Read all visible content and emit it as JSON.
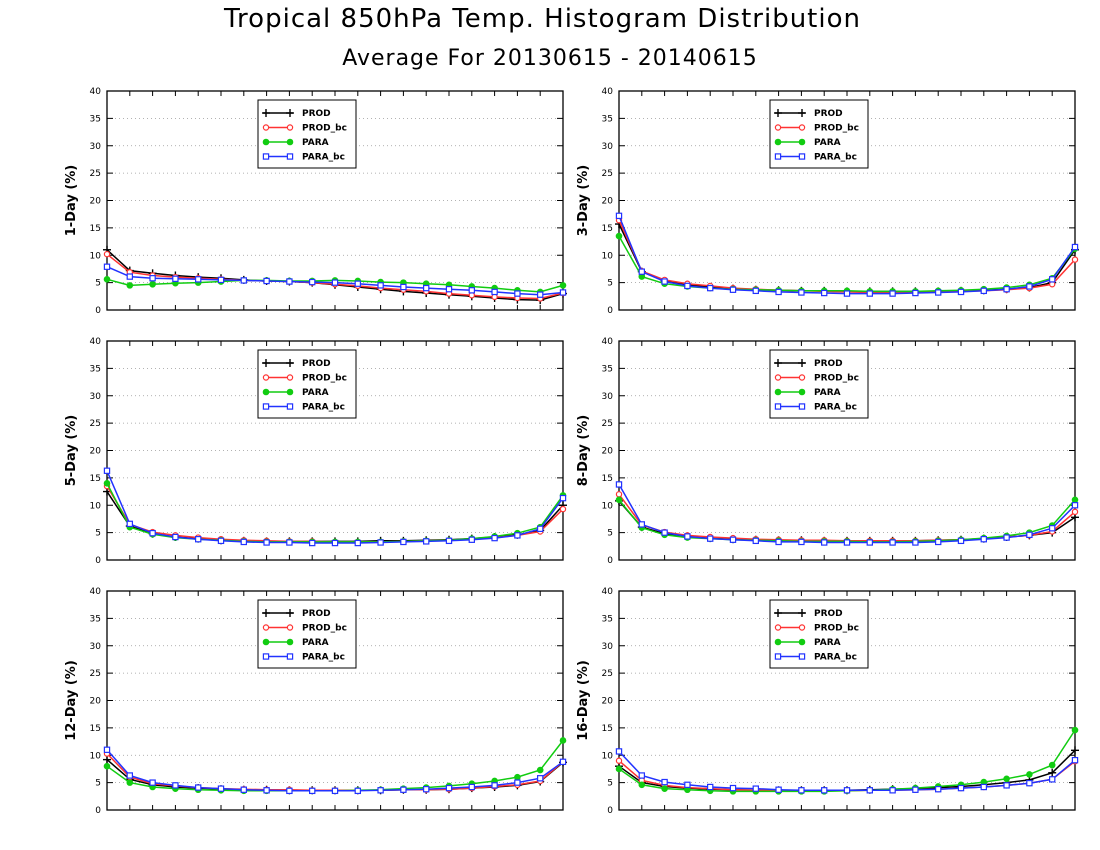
{
  "title": "Tropical 850hPa Temp. Histogram Distribution",
  "subtitle": "Average For 20130615 - 20140615",
  "colors": {
    "PROD": "#000000",
    "PROD_bc": "#ff3333",
    "PARA": "#11cc11",
    "PARA_bc": "#2233ff"
  },
  "chart_data": [
    {
      "type": "line",
      "ylabel": "1-Day (%)",
      "ylim": [
        0,
        40
      ],
      "yticks": [
        0,
        5,
        10,
        15,
        20,
        25,
        30,
        35,
        40
      ],
      "x": [
        1,
        2,
        3,
        4,
        5,
        6,
        7,
        8,
        9,
        10,
        11,
        12,
        13,
        14,
        15,
        16,
        17,
        18,
        19,
        20,
        21
      ],
      "series": [
        {
          "name": "PROD",
          "values": [
            11.0,
            7.2,
            6.7,
            6.3,
            6.0,
            5.8,
            5.5,
            5.3,
            5.2,
            5.0,
            4.6,
            4.2,
            3.8,
            3.4,
            3.1,
            2.8,
            2.5,
            2.2,
            1.9,
            1.8,
            3.0
          ]
        },
        {
          "name": "PROD_bc",
          "values": [
            10.2,
            6.9,
            6.3,
            6.0,
            5.8,
            5.6,
            5.4,
            5.3,
            5.2,
            5.0,
            4.7,
            4.4,
            4.0,
            3.7,
            3.4,
            3.0,
            2.7,
            2.4,
            2.2,
            2.1,
            3.1
          ]
        },
        {
          "name": "PARA",
          "values": [
            5.6,
            4.5,
            4.7,
            4.9,
            5.0,
            5.2,
            5.4,
            5.4,
            5.3,
            5.3,
            5.4,
            5.3,
            5.1,
            5.0,
            4.8,
            4.6,
            4.3,
            4.0,
            3.6,
            3.3,
            4.5
          ]
        },
        {
          "name": "PARA_bc",
          "values": [
            7.9,
            6.1,
            5.8,
            5.7,
            5.6,
            5.5,
            5.4,
            5.3,
            5.2,
            5.1,
            5.0,
            4.8,
            4.5,
            4.2,
            4.0,
            3.8,
            3.6,
            3.3,
            3.0,
            2.8,
            3.2
          ]
        }
      ]
    },
    {
      "type": "line",
      "ylabel": "3-Day (%)",
      "ylim": [
        0,
        40
      ],
      "yticks": [
        0,
        5,
        10,
        15,
        20,
        25,
        30,
        35,
        40
      ],
      "x": [
        1,
        2,
        3,
        4,
        5,
        6,
        7,
        8,
        9,
        10,
        11,
        12,
        13,
        14,
        15,
        16,
        17,
        18,
        19,
        20,
        21
      ],
      "series": [
        {
          "name": "PROD",
          "values": [
            15.7,
            7.0,
            5.3,
            4.6,
            4.2,
            3.9,
            3.7,
            3.6,
            3.5,
            3.5,
            3.4,
            3.4,
            3.4,
            3.4,
            3.4,
            3.5,
            3.6,
            3.8,
            4.1,
            5.0,
            11.0
          ]
        },
        {
          "name": "PROD_bc",
          "values": [
            16.4,
            7.1,
            5.5,
            4.8,
            4.4,
            4.0,
            3.8,
            3.6,
            3.5,
            3.4,
            3.3,
            3.2,
            3.2,
            3.2,
            3.3,
            3.4,
            3.5,
            3.7,
            4.0,
            4.7,
            9.2
          ]
        },
        {
          "name": "PARA",
          "values": [
            13.5,
            6.1,
            4.8,
            4.3,
            4.0,
            3.8,
            3.7,
            3.6,
            3.5,
            3.5,
            3.5,
            3.4,
            3.4,
            3.4,
            3.5,
            3.6,
            3.8,
            4.1,
            4.6,
            5.8,
            11.2
          ]
        },
        {
          "name": "PARA_bc",
          "values": [
            17.2,
            7.0,
            5.2,
            4.4,
            4.0,
            3.7,
            3.5,
            3.3,
            3.2,
            3.1,
            3.0,
            3.0,
            3.0,
            3.1,
            3.2,
            3.3,
            3.5,
            3.8,
            4.3,
            5.6,
            11.5
          ]
        }
      ]
    },
    {
      "type": "line",
      "ylabel": "5-Day (%)",
      "ylim": [
        0,
        40
      ],
      "yticks": [
        0,
        5,
        10,
        15,
        20,
        25,
        30,
        35,
        40
      ],
      "x": [
        1,
        2,
        3,
        4,
        5,
        6,
        7,
        8,
        9,
        10,
        11,
        12,
        13,
        14,
        15,
        16,
        17,
        18,
        19,
        20,
        21
      ],
      "series": [
        {
          "name": "PROD",
          "values": [
            12.5,
            6.2,
            4.8,
            4.2,
            3.9,
            3.6,
            3.5,
            3.4,
            3.4,
            3.4,
            3.4,
            3.4,
            3.5,
            3.5,
            3.6,
            3.7,
            3.9,
            4.2,
            4.6,
            5.4,
            10.0
          ]
        },
        {
          "name": "PROD_bc",
          "values": [
            13.5,
            6.5,
            5.1,
            4.5,
            4.1,
            3.8,
            3.6,
            3.5,
            3.4,
            3.4,
            3.3,
            3.3,
            3.3,
            3.4,
            3.5,
            3.6,
            3.8,
            4.1,
            4.5,
            5.2,
            9.3
          ]
        },
        {
          "name": "PARA",
          "values": [
            14.0,
            6.0,
            4.7,
            4.1,
            3.8,
            3.6,
            3.4,
            3.3,
            3.3,
            3.3,
            3.3,
            3.3,
            3.3,
            3.4,
            3.5,
            3.6,
            3.9,
            4.3,
            4.9,
            6.0,
            11.8
          ]
        },
        {
          "name": "PARA_bc",
          "values": [
            16.3,
            6.6,
            4.9,
            4.2,
            3.8,
            3.5,
            3.3,
            3.2,
            3.2,
            3.1,
            3.1,
            3.1,
            3.2,
            3.3,
            3.4,
            3.5,
            3.7,
            4.0,
            4.5,
            5.7,
            11.3
          ]
        }
      ]
    },
    {
      "type": "line",
      "ylabel": "8-Day (%)",
      "ylim": [
        0,
        40
      ],
      "yticks": [
        0,
        5,
        10,
        15,
        20,
        25,
        30,
        35,
        40
      ],
      "x": [
        1,
        2,
        3,
        4,
        5,
        6,
        7,
        8,
        9,
        10,
        11,
        12,
        13,
        14,
        15,
        16,
        17,
        18,
        19,
        20,
        21
      ],
      "series": [
        {
          "name": "PROD",
          "values": [
            10.8,
            6.0,
            4.8,
            4.3,
            4.0,
            3.8,
            3.7,
            3.6,
            3.6,
            3.5,
            3.5,
            3.5,
            3.5,
            3.5,
            3.6,
            3.7,
            3.9,
            4.2,
            4.5,
            5.0,
            7.8
          ]
        },
        {
          "name": "PROD_bc",
          "values": [
            12.0,
            6.4,
            5.1,
            4.5,
            4.2,
            4.0,
            3.8,
            3.7,
            3.6,
            3.6,
            3.5,
            3.5,
            3.5,
            3.5,
            3.6,
            3.7,
            3.9,
            4.2,
            4.5,
            5.2,
            8.8
          ]
        },
        {
          "name": "PARA",
          "values": [
            11.0,
            5.9,
            4.6,
            4.1,
            3.9,
            3.7,
            3.6,
            3.5,
            3.4,
            3.4,
            3.4,
            3.3,
            3.3,
            3.4,
            3.5,
            3.7,
            4.0,
            4.4,
            5.0,
            6.3,
            11.0
          ]
        },
        {
          "name": "PARA_bc",
          "values": [
            13.8,
            6.5,
            5.0,
            4.3,
            3.9,
            3.7,
            3.5,
            3.3,
            3.3,
            3.2,
            3.2,
            3.2,
            3.2,
            3.2,
            3.3,
            3.5,
            3.8,
            4.1,
            4.6,
            5.8,
            10.0
          ]
        }
      ]
    },
    {
      "type": "line",
      "ylabel": "12-Day (%)",
      "ylim": [
        0,
        40
      ],
      "yticks": [
        0,
        5,
        10,
        15,
        20,
        25,
        30,
        35,
        40
      ],
      "x": [
        1,
        2,
        3,
        4,
        5,
        6,
        7,
        8,
        9,
        10,
        11,
        12,
        13,
        14,
        15,
        16,
        17,
        18,
        19,
        20,
        21
      ],
      "series": [
        {
          "name": "PROD",
          "values": [
            9.2,
            5.6,
            4.6,
            4.2,
            4.0,
            3.8,
            3.7,
            3.7,
            3.6,
            3.6,
            3.6,
            3.6,
            3.6,
            3.7,
            3.7,
            3.8,
            4.0,
            4.2,
            4.5,
            5.2,
            8.7
          ]
        },
        {
          "name": "PROD_bc",
          "values": [
            10.3,
            6.0,
            4.8,
            4.4,
            4.1,
            3.9,
            3.8,
            3.7,
            3.7,
            3.6,
            3.6,
            3.6,
            3.6,
            3.7,
            3.7,
            3.8,
            4.0,
            4.3,
            4.6,
            5.3,
            8.8
          ]
        },
        {
          "name": "PARA",
          "values": [
            8.0,
            5.0,
            4.2,
            3.9,
            3.7,
            3.6,
            3.5,
            3.5,
            3.5,
            3.5,
            3.5,
            3.6,
            3.7,
            3.9,
            4.1,
            4.4,
            4.8,
            5.3,
            6.0,
            7.3,
            12.7
          ]
        },
        {
          "name": "PARA_bc",
          "values": [
            11.0,
            6.3,
            5.0,
            4.5,
            4.1,
            3.9,
            3.7,
            3.6,
            3.5,
            3.5,
            3.5,
            3.5,
            3.6,
            3.7,
            3.8,
            4.0,
            4.2,
            4.5,
            5.0,
            5.8,
            8.8
          ]
        }
      ]
    },
    {
      "type": "line",
      "ylabel": "16-Day (%)",
      "ylim": [
        0,
        40
      ],
      "yticks": [
        0,
        5,
        10,
        15,
        20,
        25,
        30,
        35,
        40
      ],
      "x": [
        1,
        2,
        3,
        4,
        5,
        6,
        7,
        8,
        9,
        10,
        11,
        12,
        13,
        14,
        15,
        16,
        17,
        18,
        19,
        20,
        21
      ],
      "series": [
        {
          "name": "PROD",
          "values": [
            8.0,
            5.0,
            4.3,
            4.0,
            3.8,
            3.7,
            3.6,
            3.6,
            3.6,
            3.6,
            3.6,
            3.7,
            3.8,
            3.9,
            4.1,
            4.3,
            4.6,
            5.0,
            5.5,
            6.8,
            10.9
          ]
        },
        {
          "name": "PROD_bc",
          "values": [
            9.0,
            5.4,
            4.5,
            4.1,
            3.9,
            3.7,
            3.6,
            3.6,
            3.5,
            3.5,
            3.5,
            3.6,
            3.6,
            3.7,
            3.8,
            4.0,
            4.2,
            4.5,
            4.9,
            5.6,
            8.9
          ]
        },
        {
          "name": "PARA",
          "values": [
            7.5,
            4.6,
            3.9,
            3.7,
            3.5,
            3.4,
            3.4,
            3.4,
            3.4,
            3.4,
            3.5,
            3.6,
            3.8,
            4.0,
            4.3,
            4.6,
            5.1,
            5.7,
            6.5,
            8.2,
            14.6
          ]
        },
        {
          "name": "PARA_bc",
          "values": [
            10.7,
            6.3,
            5.1,
            4.6,
            4.2,
            4.0,
            3.9,
            3.7,
            3.6,
            3.6,
            3.6,
            3.6,
            3.6,
            3.7,
            3.8,
            4.0,
            4.2,
            4.5,
            4.9,
            5.6,
            9.1
          ]
        }
      ]
    }
  ]
}
